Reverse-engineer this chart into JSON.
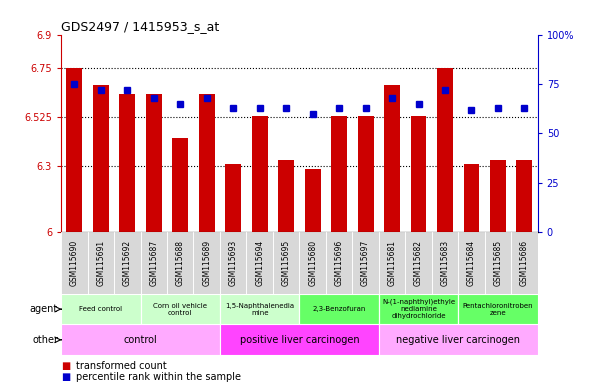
{
  "title": "GDS2497 / 1415953_s_at",
  "samples": [
    "GSM115690",
    "GSM115691",
    "GSM115692",
    "GSM115687",
    "GSM115688",
    "GSM115689",
    "GSM115693",
    "GSM115694",
    "GSM115695",
    "GSM115680",
    "GSM115696",
    "GSM115697",
    "GSM115681",
    "GSM115682",
    "GSM115683",
    "GSM115684",
    "GSM115685",
    "GSM115686"
  ],
  "transformed_count": [
    6.75,
    6.67,
    6.63,
    6.63,
    6.43,
    6.63,
    6.31,
    6.53,
    6.33,
    6.29,
    6.53,
    6.53,
    6.67,
    6.53,
    6.75,
    6.31,
    6.33,
    6.33
  ],
  "percentile_rank": [
    75,
    72,
    72,
    68,
    65,
    68,
    63,
    63,
    63,
    60,
    63,
    63,
    68,
    65,
    72,
    62,
    63,
    63
  ],
  "ylim_left": [
    6.0,
    6.9
  ],
  "ylim_right": [
    0,
    100
  ],
  "yticks_left": [
    6.0,
    6.3,
    6.525,
    6.75,
    6.9
  ],
  "ytick_labels_left": [
    "6",
    "6.3",
    "6.525",
    "6.75",
    "6.9"
  ],
  "yticks_right": [
    0,
    25,
    50,
    75,
    100
  ],
  "ytick_labels_right": [
    "0",
    "25",
    "50",
    "75",
    "100%"
  ],
  "hlines": [
    6.3,
    6.525,
    6.75
  ],
  "bar_color": "#cc0000",
  "marker_color": "#0000cc",
  "agent_groups": [
    {
      "label": "Feed control",
      "start": 0,
      "end": 3,
      "color": "#ccffcc"
    },
    {
      "label": "Corn oil vehicle\ncontrol",
      "start": 3,
      "end": 6,
      "color": "#ccffcc"
    },
    {
      "label": "1,5-Naphthalenedia\nmine",
      "start": 6,
      "end": 9,
      "color": "#ccffcc"
    },
    {
      "label": "2,3-Benzofuran",
      "start": 9,
      "end": 12,
      "color": "#66ff66"
    },
    {
      "label": "N-(1-naphthyl)ethyle\nnediamine\ndihydrochloride",
      "start": 12,
      "end": 15,
      "color": "#66ff66"
    },
    {
      "label": "Pentachloronitroben\nzene",
      "start": 15,
      "end": 18,
      "color": "#66ff66"
    }
  ],
  "other_groups": [
    {
      "label": "control",
      "start": 0,
      "end": 6,
      "color": "#ffaaff"
    },
    {
      "label": "positive liver carcinogen",
      "start": 6,
      "end": 12,
      "color": "#ff44ff"
    },
    {
      "label": "negative liver carcinogen",
      "start": 12,
      "end": 18,
      "color": "#ffaaff"
    }
  ],
  "legend_items": [
    {
      "label": "transformed count",
      "color": "#cc0000"
    },
    {
      "label": "percentile rank within the sample",
      "color": "#0000cc"
    }
  ],
  "background_color": "#ffffff"
}
